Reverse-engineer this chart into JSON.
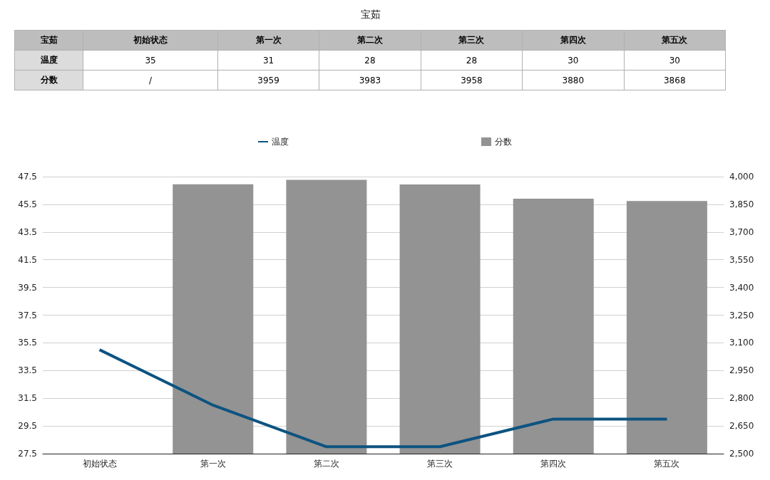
{
  "chart_data": {
    "type": "bar",
    "title": "宝茹",
    "categories": [
      "初始状态",
      "第一次",
      "第二次",
      "第三次",
      "第四次",
      "第五次"
    ],
    "series": [
      {
        "name": "温度",
        "type": "line",
        "color": "#0d5380",
        "values": [
          35,
          31,
          28,
          28,
          30,
          30
        ],
        "value_labels": [
          "35",
          "31",
          "28",
          "28",
          "30",
          "30"
        ]
      },
      {
        "name": "分数",
        "axis": "y2",
        "color": "#939393",
        "values": [
          null,
          3959,
          3983,
          3958,
          3880,
          3868
        ],
        "value_labels": [
          "/",
          "3959",
          "3983",
          "3958",
          "3880",
          "3868"
        ]
      }
    ],
    "ylim": [
      27.5,
      47.5
    ],
    "yticks": [
      27.5,
      29.5,
      31.5,
      33.5,
      35.5,
      37.5,
      39.5,
      41.5,
      43.5,
      45.5,
      47.5
    ],
    "y2lim": [
      2500,
      4000
    ],
    "y2ticks": [
      {
        "value": 2500,
        "label": "2,500"
      },
      {
        "value": 2650,
        "label": "2,650"
      },
      {
        "value": 2800,
        "label": "2,800"
      },
      {
        "value": 2950,
        "label": "2,950"
      },
      {
        "value": 3100,
        "label": "3,100"
      },
      {
        "value": 3250,
        "label": "3,250"
      },
      {
        "value": 3400,
        "label": "3,400"
      },
      {
        "value": 3550,
        "label": "3,550"
      },
      {
        "value": 3700,
        "label": "3,700"
      },
      {
        "value": 3850,
        "label": "3,850"
      },
      {
        "value": 4000,
        "label": "4,000"
      }
    ],
    "grid": "y",
    "legend": "top",
    "marker": "none",
    "line_style": "solid"
  }
}
